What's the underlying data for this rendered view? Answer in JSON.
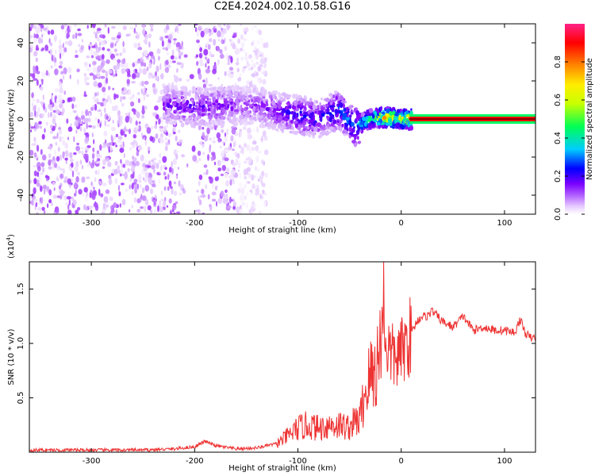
{
  "title": "C2E4.2024.002.10.58.G16",
  "chart_data": [
    {
      "type": "heatmap",
      "xlabel": "Height of straight line (km)",
      "ylabel": "Frequency (Hz)",
      "xlim": [
        -360,
        130
      ],
      "ylim": [
        -50,
        50
      ],
      "x_ticks": [
        -300,
        -200,
        -100,
        0,
        100
      ],
      "y_ticks": [
        -40,
        -20,
        0,
        20,
        40
      ],
      "colorbar": {
        "label": "Normalized spectral amplitude",
        "range": [
          0,
          1
        ],
        "ticks": [
          "0.0",
          "0.2",
          "0.4",
          "0.6",
          "0.8"
        ],
        "colormap": [
          "#ffffff",
          "#d9b3ff",
          "#8800ff",
          "#0000ff",
          "#00ccff",
          "#00ff66",
          "#c8ff00",
          "#ffee00",
          "#ff8800",
          "#ff0000",
          "#ff00aa"
        ]
      },
      "ridge": [
        {
          "x": -230,
          "y": 8,
          "amp": 0.22
        },
        {
          "x": -200,
          "y": 6,
          "amp": 0.25
        },
        {
          "x": -170,
          "y": 7,
          "amp": 0.22
        },
        {
          "x": -140,
          "y": 7,
          "amp": 0.2
        },
        {
          "x": -120,
          "y": 4,
          "amp": 0.25
        },
        {
          "x": -100,
          "y": 2,
          "amp": 0.3
        },
        {
          "x": -80,
          "y": 0,
          "amp": 0.3
        },
        {
          "x": -60,
          "y": 5,
          "amp": 0.35
        },
        {
          "x": -45,
          "y": -4,
          "amp": 0.4
        },
        {
          "x": -30,
          "y": 0,
          "amp": 0.55
        },
        {
          "x": -15,
          "y": 1,
          "amp": 0.8
        },
        {
          "x": 0,
          "y": 0,
          "amp": 0.7
        },
        {
          "x": 10,
          "y": 0,
          "amp": 0.85
        },
        {
          "x": 130,
          "y": 0,
          "amp": 0.85
        }
      ]
    },
    {
      "type": "line",
      "xlabel": "Height of straight line (km)",
      "ylabel": "SNR (10 * v/v)",
      "y_multiplier": "(x10",
      "y_multiplier_exp": "4",
      "y_multiplier_close": ")",
      "xlim": [
        -360,
        130
      ],
      "ylim": [
        0,
        1.75
      ],
      "x_ticks": [
        -300,
        -200,
        -100,
        0,
        100
      ],
      "y_ticks": [
        0.5,
        1.0,
        1.5
      ],
      "color": "#ee3333",
      "series": [
        {
          "x": [
            -360,
            -300,
            -250,
            -220,
            -200,
            -190,
            -180,
            -160,
            -140,
            -120,
            -110,
            -100,
            -90,
            -80,
            -70,
            -60,
            -50,
            -45,
            -40,
            -35,
            -30,
            -25,
            -20,
            -17,
            -15,
            -10,
            -5,
            0,
            5,
            10,
            15,
            20,
            25,
            30,
            40,
            50,
            60,
            70,
            80,
            90,
            100,
            110,
            115,
            120,
            125,
            130
          ],
          "y": [
            0.02,
            0.02,
            0.02,
            0.03,
            0.05,
            0.1,
            0.06,
            0.03,
            0.04,
            0.08,
            0.15,
            0.22,
            0.25,
            0.22,
            0.25,
            0.25,
            0.23,
            0.28,
            0.3,
            0.55,
            0.7,
            0.75,
            0.95,
            1.4,
            1.0,
            0.9,
            0.85,
            0.92,
            1.0,
            1.1,
            1.2,
            1.25,
            1.25,
            1.3,
            1.2,
            1.15,
            1.25,
            1.12,
            1.15,
            1.12,
            1.12,
            1.1,
            1.22,
            1.1,
            1.05,
            1.05
          ]
        }
      ]
    }
  ]
}
